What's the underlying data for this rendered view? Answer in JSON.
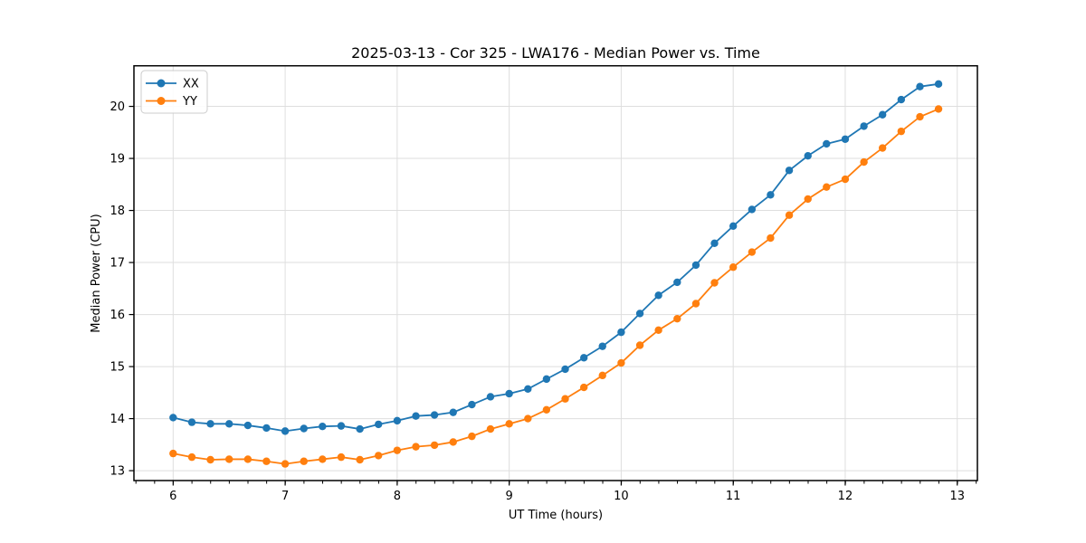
{
  "chart_data": {
    "type": "line",
    "title": "2025-03-13 - Cor 325 - LWA176 - Median Power vs. Time",
    "xlabel": "UT Time (hours)",
    "ylabel": "Median Power (CPU)",
    "xlim": [
      5.65,
      13.18
    ],
    "ylim": [
      12.81,
      20.78
    ],
    "xticks": [
      6,
      7,
      8,
      9,
      10,
      11,
      12,
      13
    ],
    "yticks": [
      13,
      14,
      15,
      16,
      17,
      18,
      19,
      20
    ],
    "x_minor_step": 0.1667,
    "grid": true,
    "legend_position": "upper-left",
    "x": [
      6.0,
      6.167,
      6.333,
      6.5,
      6.667,
      6.833,
      7.0,
      7.167,
      7.333,
      7.5,
      7.667,
      7.833,
      8.0,
      8.167,
      8.333,
      8.5,
      8.667,
      8.833,
      9.0,
      9.167,
      9.333,
      9.5,
      9.667,
      9.833,
      10.0,
      10.167,
      10.333,
      10.5,
      10.667,
      10.833,
      11.0,
      11.167,
      11.333,
      11.5,
      11.667,
      11.833,
      12.0,
      12.167,
      12.333,
      12.5,
      12.667,
      12.833
    ],
    "series": [
      {
        "name": "XX",
        "color": "#1f77b4",
        "values": [
          14.02,
          13.93,
          13.9,
          13.9,
          13.87,
          13.82,
          13.76,
          13.81,
          13.85,
          13.86,
          13.8,
          13.89,
          13.96,
          14.05,
          14.07,
          14.12,
          14.27,
          14.42,
          14.48,
          14.57,
          14.76,
          14.95,
          15.17,
          15.39,
          15.66,
          16.02,
          16.37,
          16.62,
          16.95,
          17.37,
          17.7,
          18.02,
          18.3,
          18.77,
          19.05,
          19.28,
          19.37,
          19.62,
          19.84,
          20.13,
          20.38,
          20.43
        ]
      },
      {
        "name": "YY",
        "color": "#ff7f0e",
        "values": [
          13.33,
          13.26,
          13.21,
          13.22,
          13.22,
          13.18,
          13.13,
          13.18,
          13.22,
          13.26,
          13.21,
          13.29,
          13.39,
          13.46,
          13.49,
          13.55,
          13.66,
          13.8,
          13.9,
          14.0,
          14.17,
          14.38,
          14.6,
          14.83,
          15.07,
          15.41,
          15.7,
          15.92,
          16.21,
          16.61,
          16.91,
          17.2,
          17.47,
          17.91,
          18.22,
          18.45,
          18.6,
          18.93,
          19.2,
          19.52,
          19.8,
          19.95
        ]
      }
    ],
    "colors": {
      "grid": "#dedede",
      "spine": "#000000",
      "legend_border": "#cccccc",
      "background": "#ffffff"
    }
  }
}
